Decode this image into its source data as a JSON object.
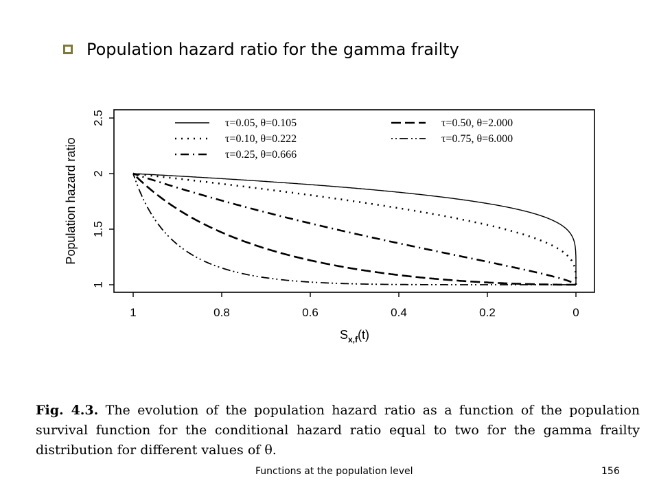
{
  "heading": {
    "bullet_icon": "square-bullet-icon",
    "bullet_color": "#7d7a3a",
    "text": "Population hazard ratio for the gamma frailty"
  },
  "chart_data": {
    "type": "line",
    "xlabel": "S",
    "xlabel_sub": "x,f",
    "xlabel_suffix": "(t)",
    "ylabel": "Population hazard ratio",
    "xlim": [
      1,
      0
    ],
    "ylim": [
      0.95,
      2.5
    ],
    "x_reversed": true,
    "xticks": [
      "1",
      "0.8",
      "0.6",
      "0.4",
      "0.2",
      "0"
    ],
    "yticks": [
      "1",
      "1.5",
      "2",
      "2.5"
    ],
    "grid": false,
    "legend_position": "top",
    "series": [
      {
        "name": "τ=0.05, θ=0.105",
        "dash": "solid",
        "theta": 0.105,
        "x": [
          1,
          0.9,
          0.8,
          0.6,
          0.4,
          0.2,
          0.1,
          0.05,
          0.02,
          0.01,
          0.001,
          0
        ],
        "y": [
          2,
          1.98,
          1.96,
          1.91,
          1.84,
          1.71,
          1.6,
          1.5,
          1.37,
          1.27,
          1.05,
          1
        ]
      },
      {
        "name": "τ=0.10, θ=0.222",
        "dash": "dotted",
        "theta": 0.222,
        "x": [
          1,
          0.8,
          0.6,
          0.4,
          0.2,
          0.1,
          0.05,
          0.02,
          0.01,
          0.001,
          0
        ],
        "y": [
          2,
          1.92,
          1.83,
          1.71,
          1.52,
          1.38,
          1.27,
          1.16,
          1.1,
          1.02,
          1
        ]
      },
      {
        "name": "τ=0.25, θ=0.666",
        "dash": "dashdot",
        "theta": 0.666,
        "x": [
          1,
          0.9,
          0.8,
          0.6,
          0.4,
          0.2,
          0.1,
          0.05,
          0.02,
          0
        ],
        "y": [
          2,
          1.89,
          1.79,
          1.6,
          1.42,
          1.23,
          1.13,
          1.07,
          1.03,
          1
        ]
      },
      {
        "name": "τ=0.50, θ=2.000",
        "dash": "longdash",
        "theta": 2.0,
        "x": [
          1,
          0.9,
          0.8,
          0.7,
          0.6,
          0.5,
          0.4,
          0.3,
          0.2,
          0.1,
          0.05,
          0
        ],
        "y": [
          2,
          1.69,
          1.51,
          1.37,
          1.27,
          1.19,
          1.13,
          1.08,
          1.04,
          1.01,
          1.0,
          1.0
        ]
      },
      {
        "name": "τ=0.75, θ=6.000",
        "dash": "twodash",
        "theta": 6.0,
        "x": [
          1,
          0.95,
          0.9,
          0.85,
          0.8,
          0.7,
          0.6,
          0.5,
          0.4,
          0.2,
          0
        ],
        "y": [
          2,
          1.61,
          1.37,
          1.22,
          1.14,
          1.05,
          1.02,
          1.01,
          1.0,
          1.0,
          1.0
        ]
      }
    ]
  },
  "caption": {
    "label": "Fig. 4.3.",
    "text": "The evolution of the population hazard ratio as a function of the population survival function for the conditional hazard ratio equal to two for the gamma frailty distribution for different values of θ."
  },
  "footer": {
    "title": "Functions at the population level",
    "page": "156"
  }
}
